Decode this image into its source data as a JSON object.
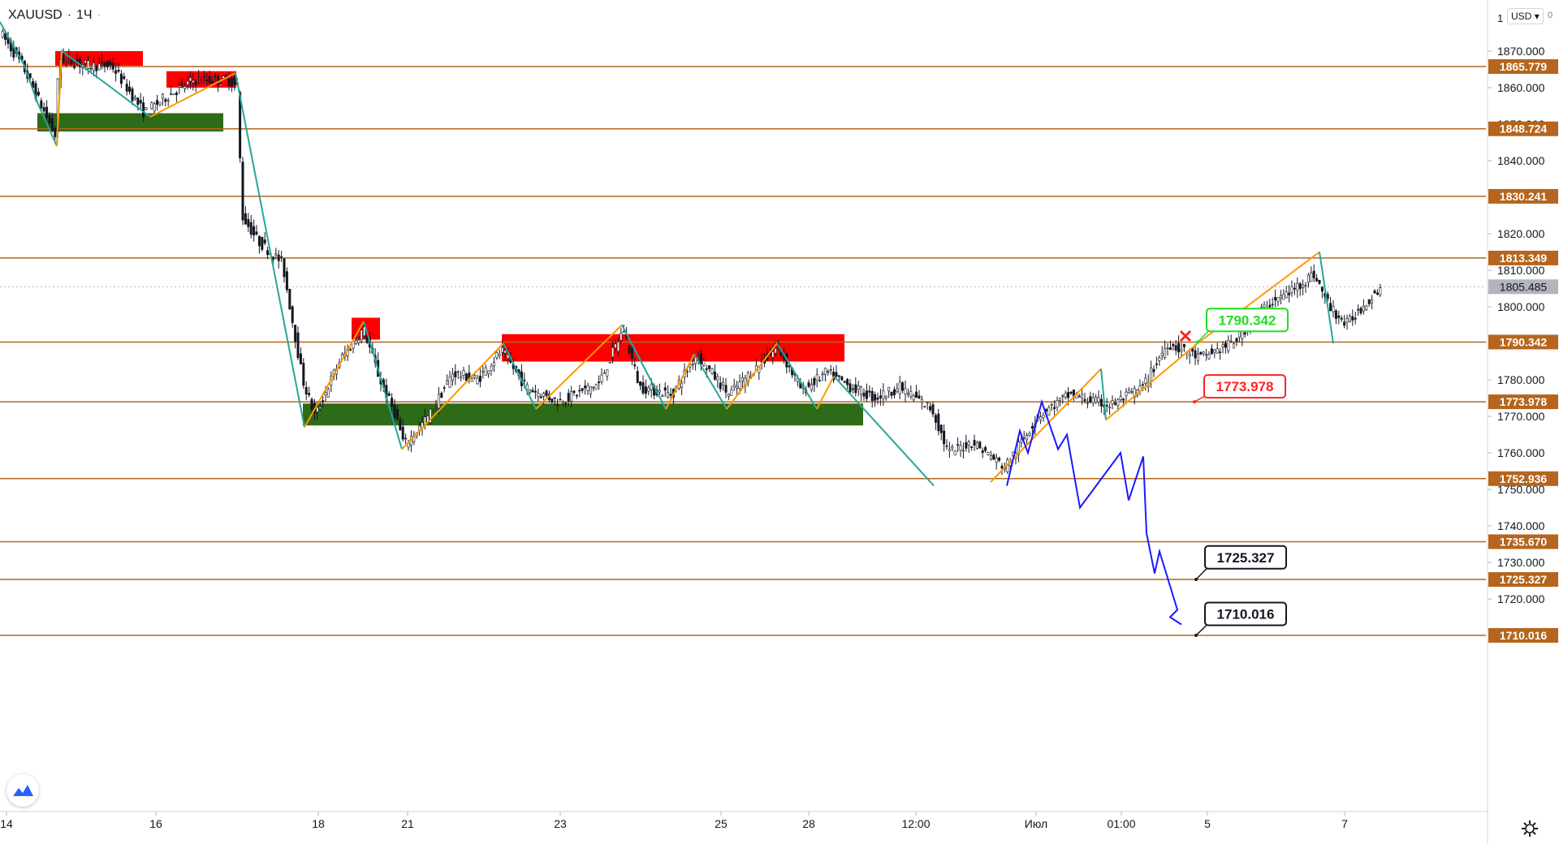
{
  "header": {
    "symbol": "XAUUSD",
    "interval": "1Ч",
    "currency": "USD",
    "currency_menu": "▾",
    "extra": "0"
  },
  "colors": {
    "level_line": "#b5651d",
    "level_badge": "#b5651d",
    "price_badge": "#b2b5be",
    "resistance_zone": "#ff0000",
    "support_zone": "#2e6b16",
    "up_leg": "#ff9800",
    "down_leg": "#26a69a",
    "forecast": "#1a1aff",
    "candle": "#131722",
    "label_green": "#22dd22",
    "label_red": "#ff2222"
  },
  "chart_data": {
    "type": "candlestick",
    "symbol": "XAUUSD",
    "interval": "1Ч",
    "ylim": [
      1705,
      1880
    ],
    "y_ticks": [
      1870,
      1860,
      1850,
      1840,
      1820,
      1810,
      1800,
      1780,
      1770,
      1760,
      1750,
      1740,
      1730,
      1720
    ],
    "y_tick_labels": [
      "1870.000",
      "1860.000",
      "1850.000",
      "1840.000",
      "1820.000",
      "1810.000",
      "1800.000",
      "1780.000",
      "1770.000",
      "1760.000",
      "1750.000",
      "1740.000",
      "1730.000",
      "1720.000"
    ],
    "top_tick_label": "1",
    "x_tick_labels": [
      "14",
      "16",
      "18",
      "21",
      "23",
      "25",
      "28",
      "12:00",
      "Июл",
      "01:00",
      "5",
      "7"
    ],
    "last_price": "1805.485",
    "levels": [
      {
        "value": 1865.779,
        "label": "1865.779"
      },
      {
        "value": 1848.724,
        "label": "1848.724"
      },
      {
        "value": 1830.241,
        "label": "1830.241"
      },
      {
        "value": 1813.349,
        "label": "1813.349"
      },
      {
        "value": 1790.342,
        "label": "1790.342"
      },
      {
        "value": 1773.978,
        "label": "1773.978"
      },
      {
        "value": 1752.936,
        "label": "1752.936"
      },
      {
        "value": 1735.67,
        "label": "1735.670"
      },
      {
        "value": 1725.327,
        "label": "1725.327"
      },
      {
        "value": 1710.016,
        "label": "1710.016"
      }
    ],
    "resistance_zones": [
      {
        "low": 1866,
        "high": 1870
      },
      {
        "low": 1860,
        "high": 1864.5
      },
      {
        "low": 1791,
        "high": 1797
      },
      {
        "low": 1785,
        "high": 1792.5
      }
    ],
    "support_zones": [
      {
        "low": 1848,
        "high": 1853
      },
      {
        "low": 1767.5,
        "high": 1773.5
      }
    ],
    "callouts": [
      {
        "text": "1790.342",
        "style": "green"
      },
      {
        "text": "1773.978",
        "style": "red"
      },
      {
        "text": "1725.327",
        "style": "black"
      },
      {
        "text": "1710.016",
        "style": "black"
      }
    ],
    "marker": "cross"
  }
}
